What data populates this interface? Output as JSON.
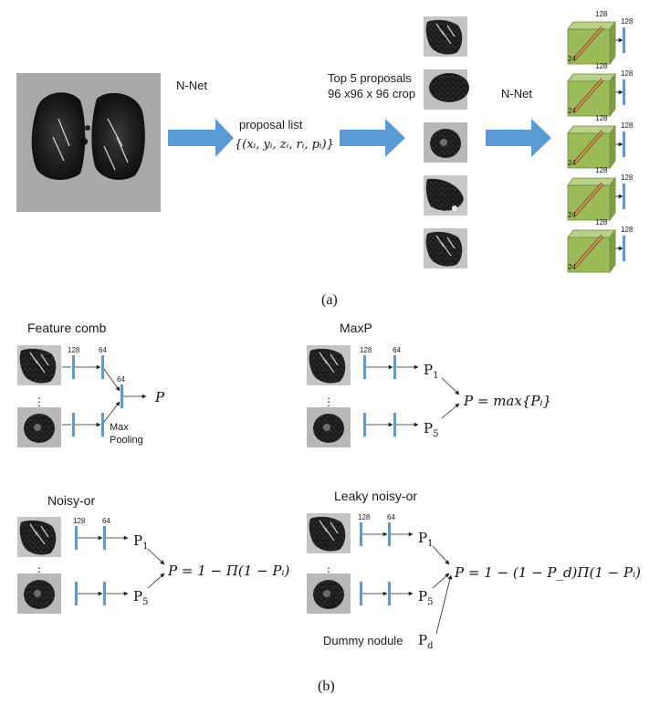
{
  "part_a": {
    "nnet_label_1": "N-Net",
    "nnet_label_2": "N-Net",
    "proposal_list_label": "proposal list",
    "proposal_formula": "{(xᵢ, yᵢ, zᵢ, rᵢ, pᵢ)}",
    "top5_line1": "Top 5 proposals",
    "top5_line2": "96 x96 x 96 crop",
    "cube_top_label": "128",
    "cube_side_label": "24",
    "vector_label": "128",
    "caption": "(a)"
  },
  "feature_comb": {
    "title": "Feature comb",
    "dim1": "128",
    "dim2": "64",
    "dim3": "64",
    "pool_label_1": "Max",
    "pool_label_2": "Pooling",
    "output": "P"
  },
  "maxp": {
    "title": "MaxP",
    "dim1": "128",
    "dim2": "64",
    "p_top": "P",
    "p_top_sub": "1",
    "p_bottom": "P",
    "p_bottom_sub": "5",
    "formula": "P = max{Pᵢ}"
  },
  "noisy_or": {
    "title": "Noisy-or",
    "dim1": "128",
    "dim2": "64",
    "p_top": "P",
    "p_top_sub": "1",
    "p_bottom": "P",
    "p_bottom_sub": "5",
    "formula": "P = 1 − Π(1 − Pᵢ)"
  },
  "leaky_noisy_or": {
    "title": "Leaky noisy-or",
    "dim1": "128",
    "dim2": "64",
    "p_top": "P",
    "p_top_sub": "1",
    "p_bottom": "P",
    "p_bottom_sub": "5",
    "dummy_label": "Dummy nodule",
    "pd": "P",
    "pd_sub": "d",
    "formula": "P = 1 − (1 − P_d)Π(1 − Pᵢ)"
  },
  "caption_b": "(b)",
  "colors": {
    "arrow_blue": "#5b9bd5",
    "bar_blue": "#5b9bd5",
    "cube_green": "#9bbb59",
    "nodule_brown": "#c08a4a",
    "ct_gray": "#a8a8a8"
  }
}
